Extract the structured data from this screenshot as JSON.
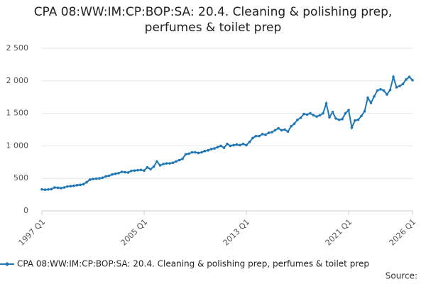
{
  "chart_data": {
    "type": "line",
    "title": "CPA 08:WW:IM:CP:BOP:SA: 20.4. Cleaning & polishing prep, perfumes & toilet prep",
    "categories": [
      "1997 Q1",
      null,
      null,
      null,
      null,
      null,
      null,
      null,
      null,
      null,
      null,
      null,
      null,
      null,
      null,
      null,
      null,
      null,
      null,
      null,
      null,
      null,
      null,
      null,
      null,
      null,
      null,
      null,
      null,
      null,
      null,
      null,
      "2005 Q1",
      null,
      null,
      null,
      null,
      null,
      null,
      null,
      null,
      null,
      null,
      null,
      null,
      null,
      null,
      null,
      null,
      null,
      null,
      null,
      null,
      null,
      null,
      null,
      null,
      null,
      null,
      null,
      null,
      null,
      null,
      null,
      "2013 Q1",
      null,
      null,
      null,
      null,
      null,
      null,
      null,
      null,
      null,
      null,
      null,
      null,
      null,
      null,
      null,
      null,
      null,
      null,
      null,
      null,
      null,
      null,
      null,
      null,
      null,
      null,
      null,
      null,
      null,
      null,
      null,
      "2021 Q1",
      null,
      null,
      null,
      null,
      null,
      null,
      null,
      null,
      null,
      null,
      null,
      null,
      null,
      null,
      null,
      null,
      null,
      null,
      null,
      "2026 Q1"
    ],
    "series": [
      {
        "name": "CPA 08:WW:IM:CP:BOP:SA: 20.4. Cleaning & polishing prep, perfumes & toilet prep",
        "color": "#1f77b4",
        "values": [
          330,
          325,
          330,
          335,
          360,
          355,
          350,
          360,
          375,
          380,
          385,
          395,
          400,
          410,
          440,
          480,
          490,
          495,
          500,
          510,
          530,
          540,
          560,
          570,
          580,
          600,
          595,
          590,
          615,
          620,
          625,
          630,
          620,
          670,
          640,
          680,
          760,
          700,
          720,
          730,
          730,
          740,
          760,
          780,
          800,
          870,
          880,
          900,
          900,
          890,
          900,
          920,
          930,
          950,
          960,
          980,
          1000,
          970,
          1030,
          1000,
          1010,
          1020,
          1010,
          1030,
          1010,
          1060,
          1120,
          1150,
          1150,
          1180,
          1170,
          1200,
          1210,
          1240,
          1270,
          1240,
          1250,
          1220,
          1300,
          1340,
          1400,
          1430,
          1490,
          1480,
          1500,
          1470,
          1450,
          1470,
          1500,
          1650,
          1440,
          1520,
          1420,
          1400,
          1410,
          1500,
          1550,
          1280,
          1390,
          1400,
          1460,
          1530,
          1740,
          1660,
          1760,
          1850,
          1870,
          1850,
          1790,
          1860,
          2060,
          1900,
          1920,
          1950,
          2020,
          2060,
          2010
        ]
      }
    ],
    "ylim": [
      0,
      2500
    ],
    "yticks": [
      0,
      500,
      {
        "value": 1000,
        "label": "1 000"
      },
      {
        "value": 1500,
        "label": "1 500"
      },
      {
        "value": 2000,
        "label": "2 000"
      },
      {
        "value": 2500,
        "label": "2 500"
      }
    ],
    "grid": true,
    "legend": "bottom",
    "source_label": "Source:"
  }
}
